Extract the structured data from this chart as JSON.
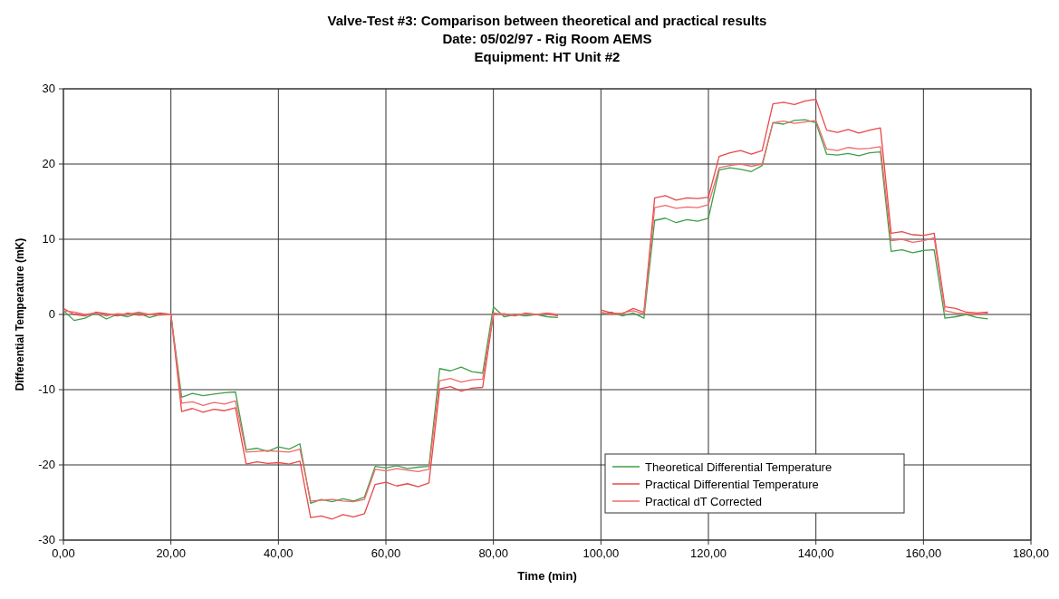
{
  "chart_data": {
    "type": "line",
    "title": "Valve-Test #3:  Comparison between theoretical and practical results",
    "subtitle": "Date: 05/02/97 - Rig Room AEMS\nEquipment: HT Unit #2",
    "xlabel": "Time (min)",
    "ylabel": "Differential Temperature  (mK)",
    "x": [
      0,
      2,
      4,
      6,
      8,
      10,
      12,
      14,
      16,
      18,
      20,
      22,
      24,
      26,
      28,
      30,
      32,
      34,
      36,
      38,
      40,
      42,
      44,
      46,
      48,
      50,
      52,
      54,
      56,
      58,
      60,
      62,
      64,
      66,
      68,
      70,
      72,
      74,
      76,
      78,
      80,
      82,
      84,
      86,
      88,
      90,
      92,
      96,
      100,
      102,
      104,
      106,
      108,
      110,
      112,
      114,
      116,
      118,
      120,
      122,
      124,
      126,
      128,
      130,
      132,
      134,
      136,
      138,
      140,
      142,
      144,
      146,
      148,
      150,
      152,
      154,
      156,
      158,
      160,
      162,
      164,
      166,
      168,
      170,
      172
    ],
    "series": [
      {
        "name": "Theoretical Differential Temperature",
        "color": "#3f9f4a",
        "values": [
          0.5,
          -0.8,
          -0.5,
          0.2,
          -0.6,
          0,
          -0.3,
          0.2,
          -0.4,
          0,
          0,
          -11,
          -10.5,
          -10.8,
          -10.6,
          -10.4,
          -10.3,
          -18,
          -17.8,
          -18.2,
          -17.6,
          -17.9,
          -17.2,
          -25.1,
          -24.6,
          -24.9,
          -24.5,
          -24.8,
          -24.3,
          -20.2,
          -20.4,
          -20.1,
          -20.5,
          -20.3,
          -20.2,
          -7.2,
          -7.5,
          -7,
          -7.6,
          -7.8,
          1,
          -0.3,
          0,
          -0.2,
          0,
          -0.3,
          -0.4,
          null,
          0,
          0.3,
          -0.2,
          0.2,
          -0.5,
          12.5,
          12.8,
          12.2,
          12.6,
          12.4,
          12.8,
          19.2,
          19.5,
          19.3,
          19,
          19.8,
          25.5,
          25.3,
          25.8,
          25.9,
          25.5,
          21.3,
          21.2,
          21.4,
          21.1,
          21.5,
          21.6,
          8.4,
          8.6,
          8.2,
          8.5,
          8.6,
          -0.5,
          -0.3,
          0,
          -0.4,
          -0.6
        ]
      },
      {
        "name": "Practical Differential Temperature",
        "color": "#e8484a",
        "values": [
          0.8,
          0,
          -0.2,
          0.3,
          0.1,
          -0.2,
          0.2,
          -0.1,
          0,
          0.2,
          0,
          -12.9,
          -12.5,
          -13,
          -12.6,
          -12.8,
          -12.4,
          -19.9,
          -19.6,
          -19.8,
          -19.7,
          -19.9,
          -19.5,
          -27,
          -26.8,
          -27.2,
          -26.6,
          -26.9,
          -26.5,
          -22.6,
          -22.3,
          -22.8,
          -22.5,
          -22.9,
          -22.4,
          -9.9,
          -9.6,
          -10.2,
          -9.8,
          -9.7,
          0,
          0.1,
          -0.2,
          0.2,
          0,
          0.1,
          -0.2,
          null,
          0.6,
          0.2,
          0.1,
          0.8,
          0.3,
          15.5,
          15.8,
          15.2,
          15.5,
          15.4,
          15.6,
          21,
          21.5,
          21.8,
          21.3,
          21.8,
          28,
          28.2,
          27.9,
          28.4,
          28.6,
          24.5,
          24.2,
          24.6,
          24.1,
          24.5,
          24.8,
          10.8,
          11,
          10.6,
          10.5,
          10.8,
          1,
          0.8,
          0.3,
          0.2,
          0.3
        ]
      },
      {
        "name": "Practical dT Corrected",
        "color": "#f06a6a",
        "values": [
          0.5,
          0.3,
          0,
          0.2,
          -0.2,
          0.1,
          0,
          0.3,
          0,
          -0.1,
          0,
          -11.8,
          -11.6,
          -12.1,
          -11.7,
          -11.9,
          -11.5,
          -18.3,
          -18.2,
          -18.1,
          -18.2,
          -18.3,
          -17.9,
          -24.8,
          -24.7,
          -24.6,
          -24.8,
          -24.9,
          -24.6,
          -20.6,
          -20.8,
          -20.5,
          -20.7,
          -20.9,
          -20.6,
          -8.8,
          -8.5,
          -9,
          -8.7,
          -8.6,
          0.2,
          0,
          -0.1,
          0.1,
          0,
          0.2,
          0,
          null,
          0.3,
          0,
          0.2,
          0.5,
          0.1,
          14.2,
          14.5,
          14.1,
          14.3,
          14.2,
          14.6,
          19.5,
          19.8,
          20,
          19.7,
          20,
          25.5,
          25.7,
          25.4,
          25.6,
          25.8,
          22,
          21.8,
          22.2,
          22,
          22.1,
          22.3,
          9.8,
          10,
          9.6,
          9.8,
          10.2,
          0.5,
          0.2,
          0.1,
          0,
          0.2
        ]
      }
    ],
    "xlim": [
      0,
      180
    ],
    "xticks": [
      {
        "value": 0,
        "label": "0,00"
      },
      {
        "value": 20,
        "label": "20,00"
      },
      {
        "value": 40,
        "label": "40,00"
      },
      {
        "value": 60,
        "label": "60,00"
      },
      {
        "value": 80,
        "label": "80,00"
      },
      {
        "value": 100,
        "label": "100,00"
      },
      {
        "value": 120,
        "label": "120,00"
      },
      {
        "value": 140,
        "label": "140,00"
      },
      {
        "value": 160,
        "label": "160,00"
      },
      {
        "value": 180,
        "label": "180,00"
      }
    ],
    "ylim": [
      -30,
      30
    ],
    "yticks": [
      -30,
      -20,
      -10,
      0,
      10,
      20,
      30
    ],
    "grid": true,
    "legend": "bottom right",
    "marker": "none",
    "line_style": "solid"
  }
}
